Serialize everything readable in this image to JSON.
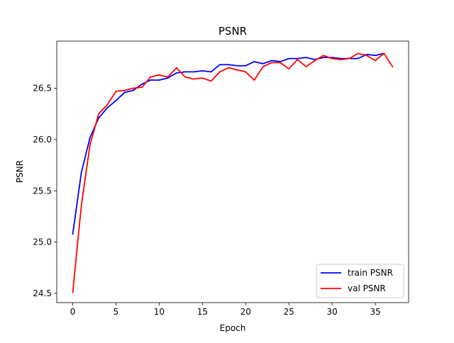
{
  "chart_data": {
    "type": "line",
    "title": "PSNR",
    "xlabel": "Epoch",
    "ylabel": "PSNR",
    "xlim": [
      -1.85,
      38.85
    ],
    "ylim": [
      24.41,
      26.96
    ],
    "xticks": [
      0,
      5,
      10,
      15,
      20,
      25,
      30,
      35
    ],
    "xtick_labels": [
      "0",
      "5",
      "10",
      "15",
      "20",
      "25",
      "30",
      "35"
    ],
    "yticks": [
      24.5,
      25.0,
      25.5,
      26.0,
      26.5
    ],
    "ytick_labels": [
      "24.5",
      "25.0",
      "25.5",
      "26.0",
      "26.5"
    ],
    "grid": false,
    "legend_position": "lower-right",
    "series": [
      {
        "name": "train PSNR",
        "color": "#0000ff",
        "x": [
          0,
          1,
          2,
          3,
          4,
          5,
          6,
          7,
          8,
          9,
          10,
          11,
          12,
          13,
          14,
          15,
          16,
          17,
          18,
          19,
          20,
          21,
          22,
          23,
          24,
          25,
          26,
          27,
          28,
          29,
          30,
          31,
          32,
          33,
          34,
          35,
          36
        ],
        "values": [
          25.08,
          25.68,
          26.02,
          26.21,
          26.31,
          26.38,
          26.46,
          26.48,
          26.54,
          26.58,
          26.58,
          26.6,
          26.65,
          26.66,
          26.66,
          26.67,
          26.66,
          26.73,
          26.73,
          26.72,
          26.72,
          26.76,
          26.74,
          26.77,
          26.76,
          26.79,
          26.79,
          26.8,
          26.78,
          26.8,
          26.8,
          26.79,
          26.79,
          26.79,
          26.83,
          26.82,
          26.84
        ]
      },
      {
        "name": "val PSNR",
        "color": "#ff0000",
        "x": [
          0,
          1,
          2,
          3,
          4,
          5,
          6,
          7,
          8,
          9,
          10,
          11,
          12,
          13,
          14,
          15,
          16,
          17,
          18,
          19,
          20,
          21,
          22,
          23,
          24,
          25,
          26,
          27,
          28,
          29,
          30,
          31,
          32,
          33,
          34,
          35,
          36,
          37
        ],
        "values": [
          24.51,
          25.36,
          25.95,
          26.25,
          26.34,
          26.47,
          26.48,
          26.5,
          26.51,
          26.61,
          26.63,
          26.61,
          26.7,
          26.61,
          26.59,
          26.6,
          26.57,
          26.66,
          26.7,
          26.68,
          26.66,
          26.58,
          26.71,
          26.75,
          26.75,
          26.69,
          26.78,
          26.71,
          26.77,
          26.82,
          26.79,
          26.78,
          26.79,
          26.84,
          26.82,
          26.77,
          26.84,
          26.71
        ]
      }
    ]
  }
}
